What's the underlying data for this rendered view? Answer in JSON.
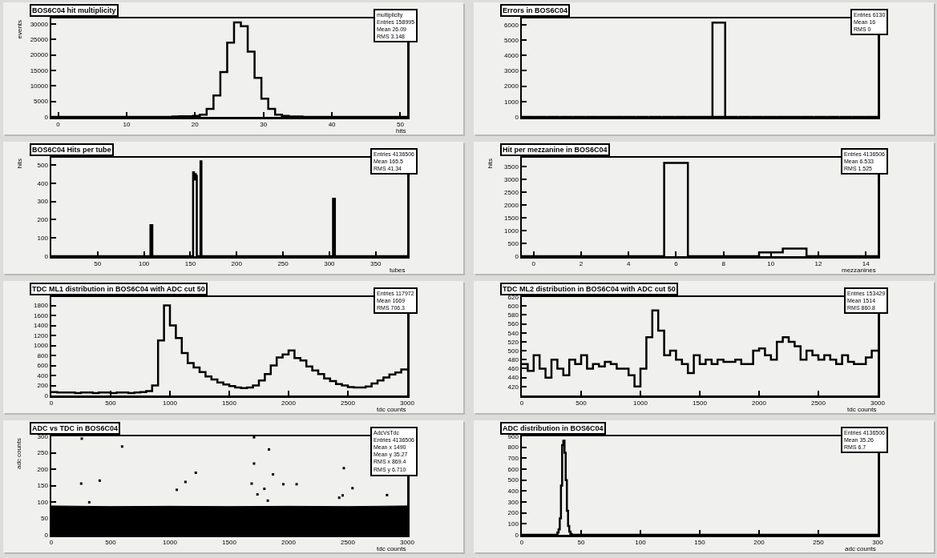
{
  "chart_data": [
    {
      "type": "histogram",
      "title": "BOS6C04 hit multiplicity",
      "xlabel": "hits",
      "ylabel": "events",
      "color": "#000000",
      "bins": [
        -1,
        16.7,
        17.7,
        18.7,
        19.7,
        20.7,
        21.7,
        22.7,
        23.7,
        24.7,
        25.7,
        26.7,
        27.7,
        28.7,
        29.7,
        30.7,
        31.7,
        32.7,
        33.7,
        34.7,
        35.7,
        51
      ],
      "values": [
        0,
        100,
        200,
        200,
        300,
        700,
        2600,
        6900,
        14500,
        24000,
        30500,
        29300,
        21100,
        12600,
        5900,
        2600,
        700,
        300,
        100,
        100,
        0
      ],
      "xlim": [
        -1,
        51
      ],
      "xticks": [
        0,
        10,
        20,
        30,
        40,
        50
      ],
      "ylim": [
        0,
        31800
      ],
      "yticks": [
        0,
        5000,
        10000,
        15000,
        20000,
        25000,
        30000
      ],
      "annotations": [
        "multiplicity",
        "Entries 158995",
        "Mean 26.09",
        "RMS 3.148"
      ]
    },
    {
      "type": "bar",
      "title": "Errors in BOS6C04",
      "color": "#000000",
      "categories": [
        null,
        null,
        null,
        null,
        null,
        null,
        null,
        null,
        null,
        null,
        null,
        null,
        null,
        null,
        null,
        null,
        null,
        null,
        null,
        null,
        null,
        null,
        null,
        null,
        null,
        null,
        null,
        null
      ],
      "values": [
        0,
        0,
        0,
        0,
        0,
        0,
        0,
        0,
        0,
        0,
        0,
        0,
        0,
        0,
        0,
        6130,
        0,
        0,
        0,
        0,
        0,
        0,
        0,
        0,
        0,
        0,
        0,
        0
      ],
      "ylim": [
        0,
        6400
      ],
      "yticks": [
        0,
        1000,
        2000,
        3000,
        4000,
        5000,
        6000
      ],
      "annotations": [
        "Entries 6130",
        "Mean 16",
        "RMS 0"
      ]
    },
    {
      "type": "histogram",
      "title": "BOS6C04 Hits per tube",
      "xlabel": "tubes",
      "ylabel": "hits",
      "color": "#000000",
      "bins": [
        0,
        107,
        109,
        153,
        154,
        155,
        156,
        157,
        161,
        162,
        304,
        306,
        384
      ],
      "values": [
        0,
        170,
        0,
        460,
        420,
        450,
        440,
        0,
        520,
        0,
        315,
        0
      ],
      "xlim": [
        0,
        384
      ],
      "xticks": [
        50,
        100,
        150,
        200,
        250,
        300,
        350
      ],
      "ylim": [
        0,
        540
      ],
      "yticks": [
        0,
        100,
        200,
        300,
        400,
        500
      ],
      "annotations": [
        "Entries 4136506",
        "Mean 165.5",
        "RMS 41.34"
      ]
    },
    {
      "type": "histogram",
      "title": "Hit per mezzanine in BOS6C04",
      "xlabel": "mezzanines",
      "ylabel": "hits",
      "color": "#000000",
      "bins": [
        -0.5,
        5.5,
        6.5,
        9.5,
        10.5,
        11.5,
        14.5
      ],
      "values": [
        0,
        3650,
        0,
        150,
        300,
        0
      ],
      "xlim": [
        -0.5,
        14.5
      ],
      "xticks": [
        0,
        2,
        4,
        6,
        8,
        10,
        12,
        14
      ],
      "ylim": [
        0,
        3850
      ],
      "yticks": [
        0,
        500,
        1000,
        1500,
        2000,
        2500,
        3000,
        3500
      ],
      "annotations": [
        "Entries 4136506",
        "Mean 6.533",
        "RMS 1.525"
      ]
    },
    {
      "type": "histogram",
      "title": "TDC ML1 distribution in BOS6C04 with ADC cut 50",
      "xlabel": "tdc counts",
      "color": "#000000",
      "bins": [
        0,
        50,
        100,
        150,
        200,
        250,
        300,
        350,
        400,
        450,
        500,
        550,
        600,
        650,
        700,
        750,
        800,
        850,
        900,
        950,
        1000,
        1050,
        1100,
        1150,
        1200,
        1250,
        1300,
        1350,
        1400,
        1450,
        1500,
        1550,
        1600,
        1650,
        1700,
        1750,
        1800,
        1850,
        1900,
        1950,
        2000,
        2050,
        2100,
        2150,
        2200,
        2250,
        2300,
        2350,
        2400,
        2450,
        2500,
        2550,
        2600,
        2650,
        2700,
        2750,
        2800,
        2850,
        2900,
        2950,
        3000
      ],
      "values": [
        70,
        60,
        60,
        60,
        50,
        60,
        60,
        50,
        60,
        60,
        50,
        60,
        60,
        50,
        60,
        70,
        90,
        200,
        1100,
        1800,
        1400,
        1150,
        850,
        650,
        560,
        470,
        380,
        320,
        260,
        220,
        190,
        160,
        150,
        160,
        200,
        300,
        430,
        600,
        760,
        820,
        900,
        750,
        700,
        580,
        500,
        430,
        340,
        290,
        230,
        200,
        170,
        160,
        160,
        180,
        240,
        300,
        360,
        420,
        460,
        520
      ],
      "xlim": [
        0,
        3000
      ],
      "xticks": [
        0,
        500,
        1000,
        1500,
        2000,
        2500,
        3000
      ],
      "ylim": [
        0,
        1970
      ],
      "yticks": [
        0,
        200,
        400,
        600,
        800,
        1000,
        1200,
        1400,
        1600,
        1800
      ],
      "annotations": [
        "Entries 117972",
        "Mean 1669",
        "RMS 706.3"
      ]
    },
    {
      "type": "histogram",
      "title": "TDC ML2 distribution in BOS6C04 with ADC cut 50",
      "xlabel": "tdc counts",
      "color": "#000000",
      "bins": [
        0,
        50,
        100,
        150,
        200,
        250,
        300,
        350,
        400,
        450,
        500,
        550,
        600,
        650,
        700,
        750,
        800,
        850,
        900,
        950,
        1000,
        1050,
        1100,
        1150,
        1200,
        1250,
        1300,
        1350,
        1400,
        1450,
        1500,
        1550,
        1600,
        1650,
        1700,
        1750,
        1800,
        1850,
        1900,
        1950,
        2000,
        2050,
        2100,
        2150,
        2200,
        2250,
        2300,
        2350,
        2400,
        2450,
        2500,
        2550,
        2600,
        2650,
        2700,
        2750,
        2800,
        2850,
        2900,
        2950,
        3000
      ],
      "values": [
        470,
        455,
        490,
        460,
        440,
        480,
        460,
        445,
        480,
        470,
        490,
        460,
        470,
        465,
        475,
        470,
        460,
        460,
        445,
        420,
        460,
        530,
        590,
        545,
        490,
        500,
        480,
        470,
        450,
        490,
        470,
        480,
        470,
        480,
        475,
        475,
        480,
        470,
        470,
        500,
        505,
        490,
        480,
        520,
        530,
        520,
        510,
        480,
        500,
        490,
        480,
        490,
        480,
        470,
        490,
        475,
        470,
        470,
        485,
        500
      ],
      "xlim": [
        0,
        3000
      ],
      "xticks": [
        0,
        500,
        1000,
        1500,
        2000,
        2500,
        3000
      ],
      "ylim": [
        400,
        620
      ],
      "yticks": [
        420,
        440,
        460,
        480,
        500,
        520,
        540,
        560,
        580,
        600,
        620
      ],
      "annotations": [
        "Entries 153429",
        "Mean 1514",
        "RMS 860.8"
      ]
    },
    {
      "type": "scatter",
      "title": "ADC vs TDC in BOS6C04",
      "xlabel": "tdc counts",
      "ylabel": "adc counts",
      "series": [
        {
          "type": "area",
          "color": "#000000",
          "x": [
            0,
            500,
            1000,
            1500,
            2000,
            2500,
            3000
          ],
          "values": [
            88,
            86,
            87,
            86,
            87,
            86,
            88
          ]
        },
        {
          "type": "scatter",
          "marker": "square",
          "color": "#000000",
          "x": [
            257,
            252,
            408,
            597,
            320,
            1058,
            1131,
            1218,
            1709,
            1709,
            1689,
            1738,
            1796,
            1835,
            1869,
            1956,
            2068,
            1825,
            2466,
            2539,
            2456,
            2427,
            2830
          ],
          "values": [
            293,
            156,
            165,
            269,
            99,
            137,
            161,
            189,
            297,
            217,
            156,
            123,
            140,
            260,
            184,
            154,
            154,
            104,
            203,
            142,
            120,
            113,
            121
          ]
        }
      ],
      "xlim": [
        0,
        3000
      ],
      "xticks": [
        0,
        500,
        1000,
        1500,
        2000,
        2500,
        3000
      ],
      "ylim": [
        0,
        300
      ],
      "yticks": [
        0,
        50,
        100,
        150,
        200,
        250,
        300
      ],
      "annotations": [
        "AdcVsTdc",
        "Entries 4136506",
        "Mean x 1490",
        "Mean y 35.27",
        "RMS x 869.4",
        "RMS y 6.710"
      ]
    },
    {
      "type": "histogram",
      "title": "ADC distribution in BOS6C04",
      "xlabel": "adc counts",
      "color": "#000000",
      "bins": [
        0,
        30,
        31,
        32,
        33,
        34,
        35,
        36,
        37,
        38,
        39,
        40,
        41,
        42,
        300
      ],
      "values": [
        0,
        20,
        50,
        150,
        450,
        820,
        860,
        750,
        500,
        220,
        80,
        30,
        10,
        0
      ],
      "xlim": [
        0,
        300
      ],
      "xticks": [
        0,
        50,
        100,
        150,
        200,
        250,
        300
      ],
      "ylim": [
        0,
        900
      ],
      "yticks": [
        0,
        100,
        200,
        300,
        400,
        500,
        600,
        700,
        800,
        900
      ],
      "annotations": [
        "Entries 4136506",
        "Mean 35.26",
        "RMS 6.7"
      ]
    }
  ]
}
